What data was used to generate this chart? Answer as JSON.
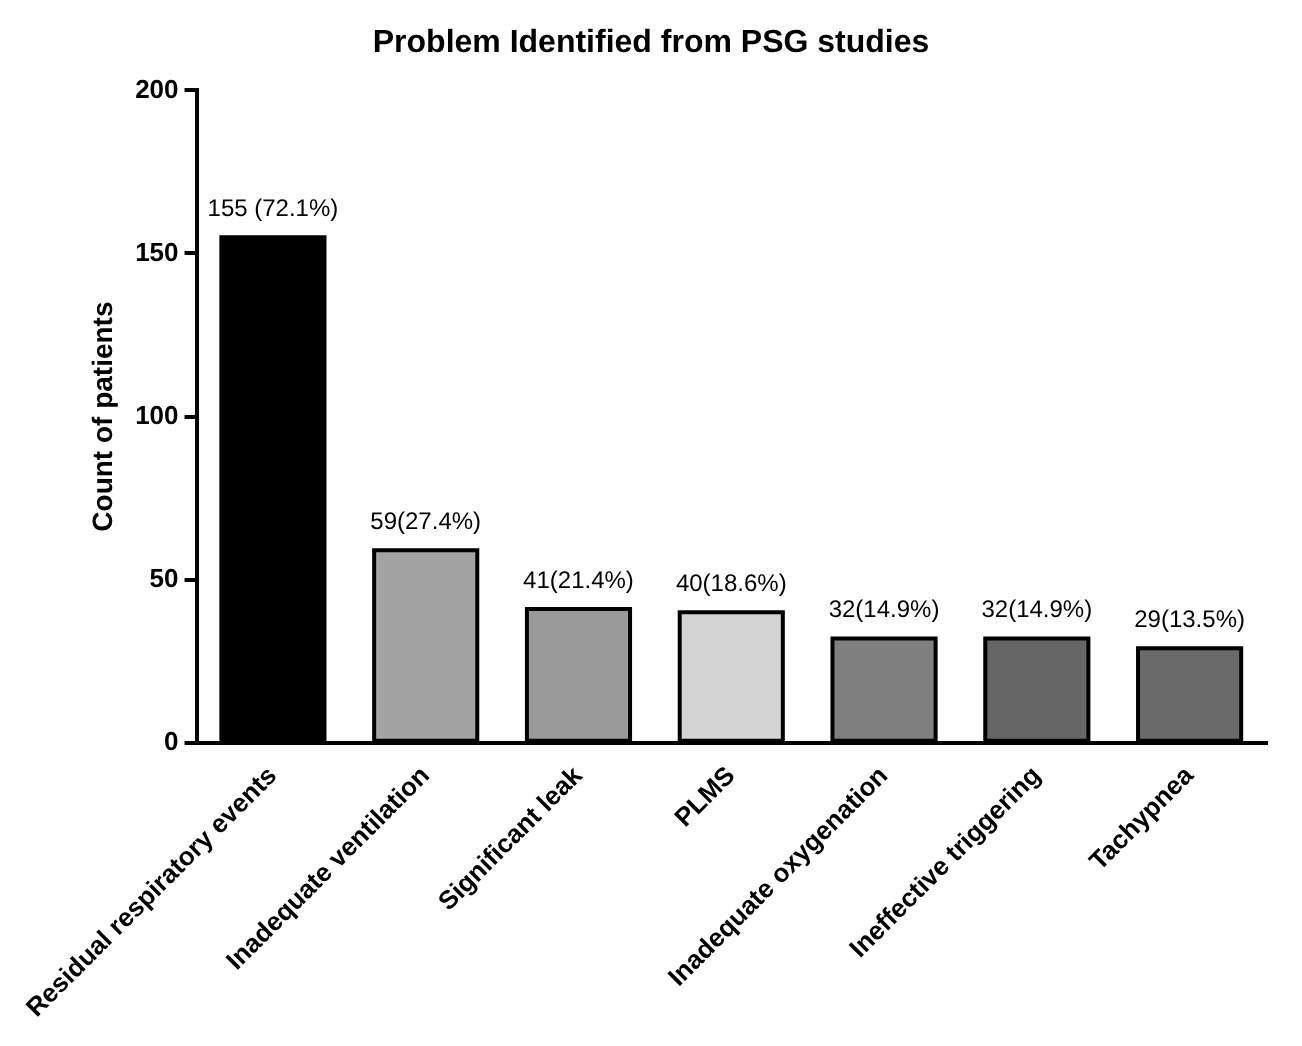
{
  "chart_data": {
    "type": "bar",
    "title": "Problem Identified from PSG studies",
    "ylabel": "Count of patients",
    "categories": [
      "Residual respiratory events",
      "Inadequate ventilation",
      "Significant leak",
      "PLMS",
      "Inadequate oxygenation",
      "Ineffective triggering",
      "Tachypnea"
    ],
    "values": [
      155,
      59,
      41,
      40,
      32,
      32,
      29
    ],
    "colors": [
      "#000000",
      "#a3a3a3",
      "#9a9a9a",
      "#d4d4d4",
      "#7f7f7f",
      "#666666",
      "#6a6a6a"
    ],
    "value_labels": [
      "155 (72.1%)",
      "59(27.4%)",
      "41(21.4%)",
      "40(18.6%)",
      "32(14.9%)",
      "32(14.9%)",
      "29(13.5%)"
    ],
    "ylim": [
      0,
      200
    ],
    "yticks": [
      0,
      50,
      100,
      150,
      200
    ],
    "grid": false,
    "legend": false
  }
}
